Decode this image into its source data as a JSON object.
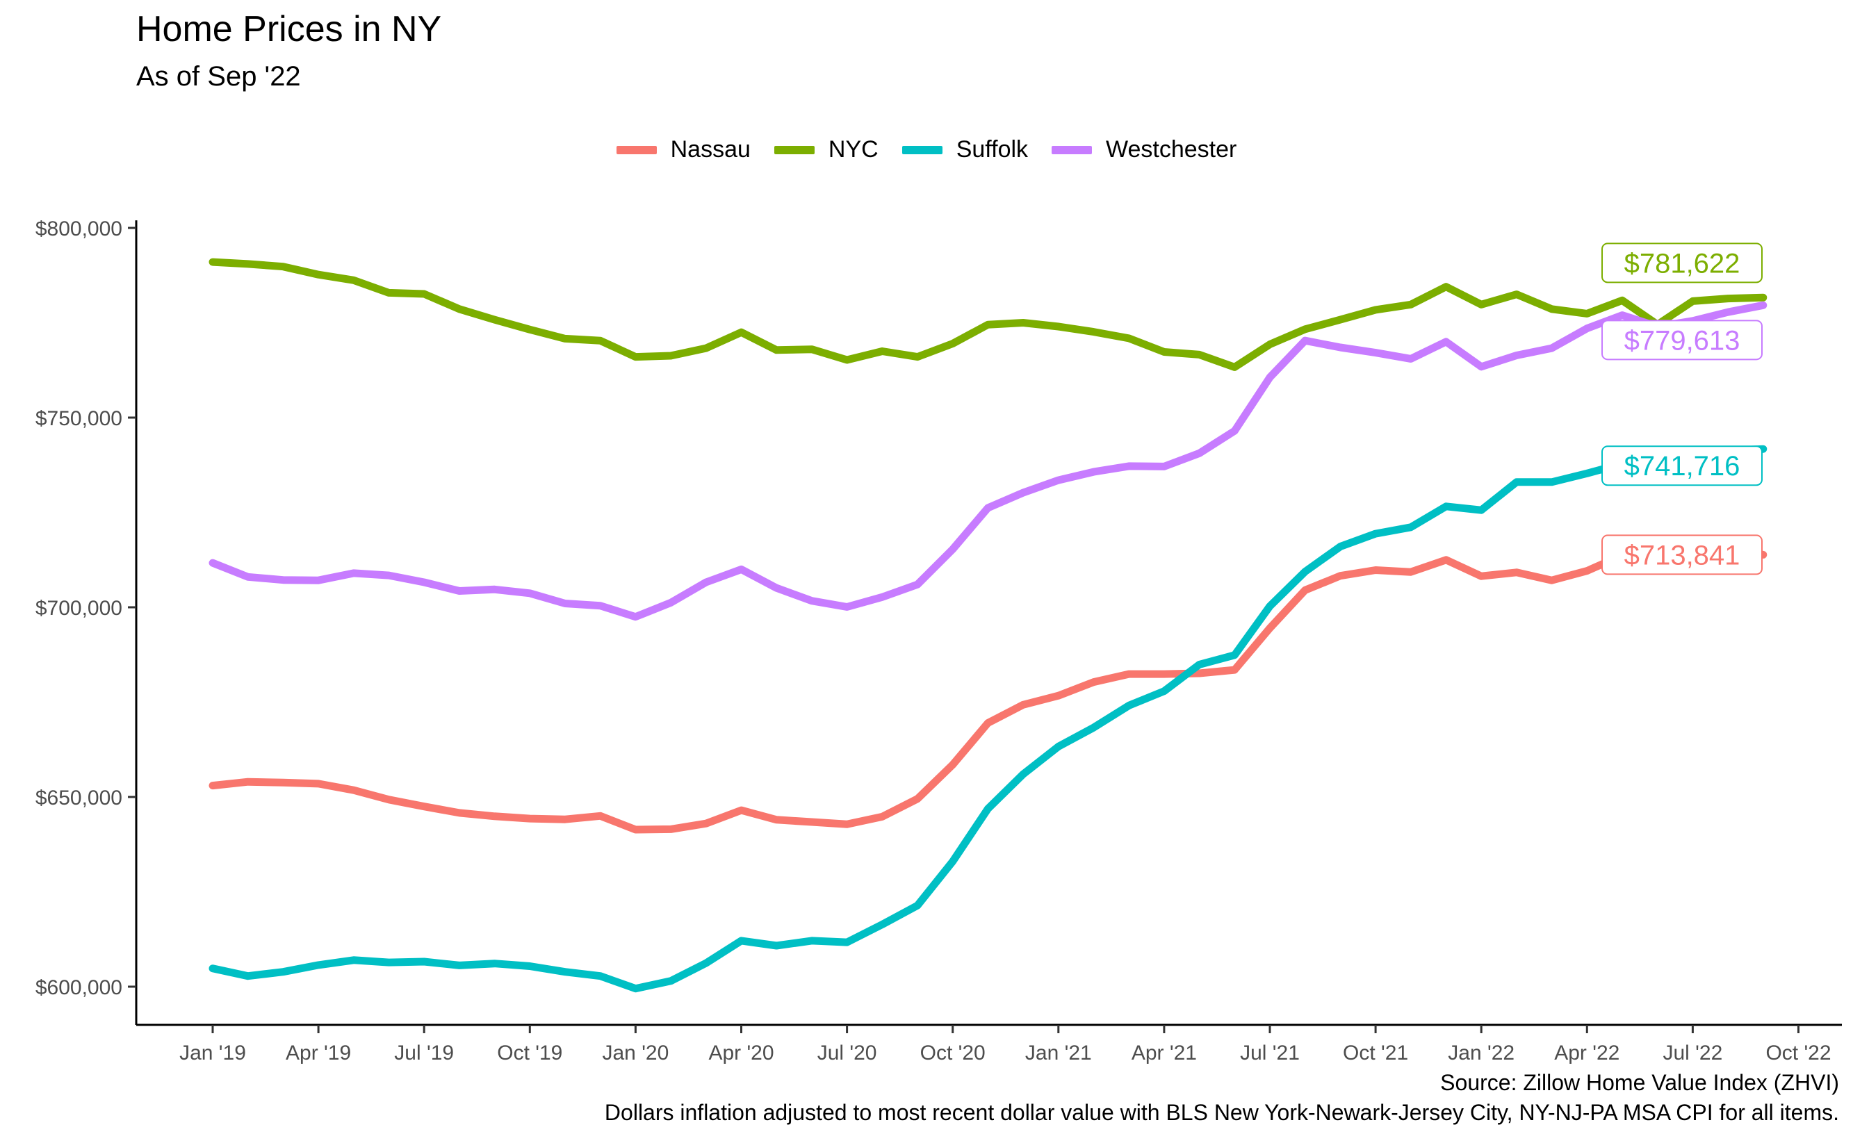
{
  "chart_data": {
    "type": "line",
    "title": "Home Prices in NY",
    "subtitle": "As of Sep '22",
    "xlabel": "",
    "ylabel": "",
    "legend_position": "top",
    "grid": false,
    "months": [
      "Jan '19",
      "Feb '19",
      "Mar '19",
      "Apr '19",
      "May '19",
      "Jun '19",
      "Jul '19",
      "Aug '19",
      "Sep '19",
      "Oct '19",
      "Nov '19",
      "Dec '19",
      "Jan '20",
      "Feb '20",
      "Mar '20",
      "Apr '20",
      "May '20",
      "Jun '20",
      "Jul '20",
      "Aug '20",
      "Sep '20",
      "Oct '20",
      "Nov '20",
      "Dec '20",
      "Jan '21",
      "Feb '21",
      "Mar '21",
      "Apr '21",
      "May '21",
      "Jun '21",
      "Jul '21",
      "Aug '21",
      "Sep '21",
      "Oct '21",
      "Nov '21",
      "Dec '21",
      "Jan '22",
      "Feb '22",
      "Mar '22",
      "Apr '22",
      "May '22",
      "Jun '22",
      "Jul '22",
      "Aug '22",
      "Sep '22"
    ],
    "x_ticks": [
      "Jan '19",
      "Apr '19",
      "Jul '19",
      "Oct '19",
      "Jan '20",
      "Apr '20",
      "Jul '20",
      "Oct '20",
      "Jan '21",
      "Apr '21",
      "Jul '21",
      "Oct '21",
      "Jan '22",
      "Apr '22",
      "Jul '22",
      "Oct '22"
    ],
    "y_ticks": [
      {
        "value": 600000,
        "label": "$600,000"
      },
      {
        "value": 650000,
        "label": "$650,000"
      },
      {
        "value": 700000,
        "label": "$700,000"
      },
      {
        "value": 750000,
        "label": "$750,000"
      },
      {
        "value": 800000,
        "label": "$800,000"
      }
    ],
    "ylim": [
      590000,
      802000
    ],
    "series": [
      {
        "name": "Nassau",
        "color": "#F8766D",
        "end_label": "$713,841",
        "values": [
          653000,
          654000,
          653800,
          653500,
          651800,
          649300,
          647500,
          645800,
          644900,
          644300,
          644100,
          645000,
          641400,
          641500,
          643000,
          646500,
          644000,
          643400,
          642800,
          644800,
          649500,
          658500,
          669500,
          674300,
          676700,
          680300,
          682400,
          682400,
          682600,
          683500,
          694500,
          704500,
          708300,
          709800,
          709300,
          712500,
          708200,
          709200,
          707100,
          709600,
          713700,
          715200,
          715500,
          715600,
          713841
        ]
      },
      {
        "name": "NYC",
        "color": "#7CAE00",
        "end_label": "$781,622",
        "values": [
          791000,
          790500,
          789800,
          787700,
          786200,
          782900,
          782600,
          778600,
          775800,
          773200,
          770800,
          770300,
          766000,
          766300,
          768300,
          772500,
          767800,
          768000,
          765200,
          767500,
          766000,
          769500,
          774500,
          775000,
          774000,
          772600,
          770900,
          767300,
          766600,
          763300,
          769300,
          773300,
          775800,
          778400,
          779800,
          784500,
          779800,
          782500,
          778600,
          777400,
          780900,
          774500,
          780700,
          781400,
          781622
        ]
      },
      {
        "name": "Suffolk",
        "color": "#00BFC4",
        "end_label": "$741,716",
        "values": [
          604800,
          602800,
          603900,
          605700,
          607000,
          606400,
          606600,
          605600,
          606100,
          605400,
          603900,
          602800,
          599500,
          601500,
          606200,
          612100,
          610800,
          612100,
          611700,
          616400,
          621400,
          633000,
          646900,
          656000,
          663300,
          668300,
          674100,
          677900,
          684900,
          687400,
          700300,
          709400,
          716000,
          719400,
          721100,
          726600,
          725600,
          733000,
          733000,
          735300,
          737800,
          739000,
          740500,
          741300,
          741716
        ]
      },
      {
        "name": "Westchester",
        "color": "#C77CFF",
        "end_label": "$779,613",
        "values": [
          711700,
          708000,
          707200,
          707100,
          709000,
          708400,
          706600,
          704300,
          704700,
          703700,
          701000,
          700400,
          697500,
          701200,
          706600,
          710000,
          705100,
          701700,
          700100,
          702700,
          706000,
          715300,
          726200,
          730200,
          733500,
          735700,
          737200,
          737100,
          740600,
          746500,
          760600,
          770300,
          768500,
          767100,
          765500,
          770000,
          763400,
          766400,
          768300,
          773500,
          777000,
          774000,
          775500,
          777800,
          779613
        ]
      }
    ]
  },
  "footer": {
    "source": "Source: Zillow Home Value Index (ZHVI)",
    "note": "Dollars inflation adjusted to most recent dollar value with BLS New York-Newark-Jersey City, NY-NJ-PA MSA CPI for all items."
  }
}
